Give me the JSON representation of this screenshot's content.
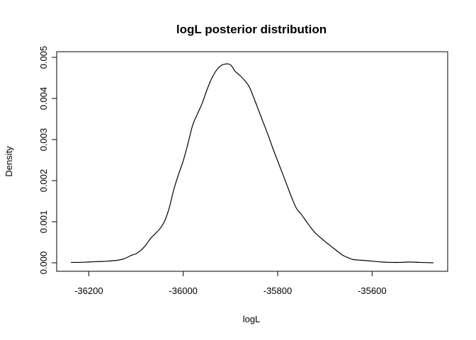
{
  "chart_data": {
    "type": "line",
    "title": "logL posterior distribution",
    "xlabel": "logL",
    "ylabel": "Density",
    "xlim": [
      -36250,
      -35450
    ],
    "ylim": [
      0,
      0.005
    ],
    "x_ticks": [
      -36200,
      -36000,
      -35800,
      -35600
    ],
    "x_tick_labels": [
      "-36200",
      "-36000",
      "-35800",
      "-35600"
    ],
    "y_ticks": [
      0.0,
      0.001,
      0.002,
      0.003,
      0.004,
      0.005
    ],
    "y_tick_labels": [
      "0.000",
      "0.001",
      "0.002",
      "0.003",
      "0.004",
      "0.005"
    ],
    "grid": false,
    "box": true,
    "line_color": "#000000",
    "series": [
      {
        "x": [
          -36238,
          -36220,
          -36200,
          -36180,
          -36160,
          -36140,
          -36125,
          -36110,
          -36100,
          -36090,
          -36080,
          -36070,
          -36060,
          -36050,
          -36040,
          -36030,
          -36020,
          -36010,
          -36000,
          -35990,
          -35980,
          -35970,
          -35960,
          -35950,
          -35940,
          -35930,
          -35920,
          -35910,
          -35905,
          -35900,
          -35895,
          -35890,
          -35880,
          -35870,
          -35860,
          -35850,
          -35840,
          -35830,
          -35820,
          -35810,
          -35800,
          -35790,
          -35780,
          -35770,
          -35760,
          -35750,
          -35740,
          -35730,
          -35720,
          -35710,
          -35700,
          -35690,
          -35680,
          -35670,
          -35660,
          -35650,
          -35640,
          -35620,
          -35600,
          -35580,
          -35560,
          -35540,
          -35520,
          -35500,
          -35470
        ],
        "y": [
          1e-05,
          1e-05,
          2e-05,
          3e-05,
          4e-05,
          6e-05,
          0.0001,
          0.00018,
          0.00022,
          0.0003,
          0.00042,
          0.00058,
          0.0007,
          0.00082,
          0.001,
          0.00132,
          0.00178,
          0.00215,
          0.00248,
          0.0029,
          0.00335,
          0.00362,
          0.00388,
          0.0042,
          0.00448,
          0.00468,
          0.0048,
          0.00484,
          0.00484,
          0.00482,
          0.00475,
          0.00466,
          0.00456,
          0.00444,
          0.00428,
          0.004,
          0.0037,
          0.0034,
          0.0031,
          0.00278,
          0.00248,
          0.00218,
          0.00188,
          0.00158,
          0.00132,
          0.00118,
          0.00102,
          0.00086,
          0.00072,
          0.00062,
          0.00052,
          0.00043,
          0.00034,
          0.00025,
          0.00017,
          0.00012,
          8e-05,
          6e-05,
          4e-05,
          2e-05,
          1e-05,
          1e-05,
          2e-05,
          1e-05,
          0.0
        ]
      }
    ]
  }
}
